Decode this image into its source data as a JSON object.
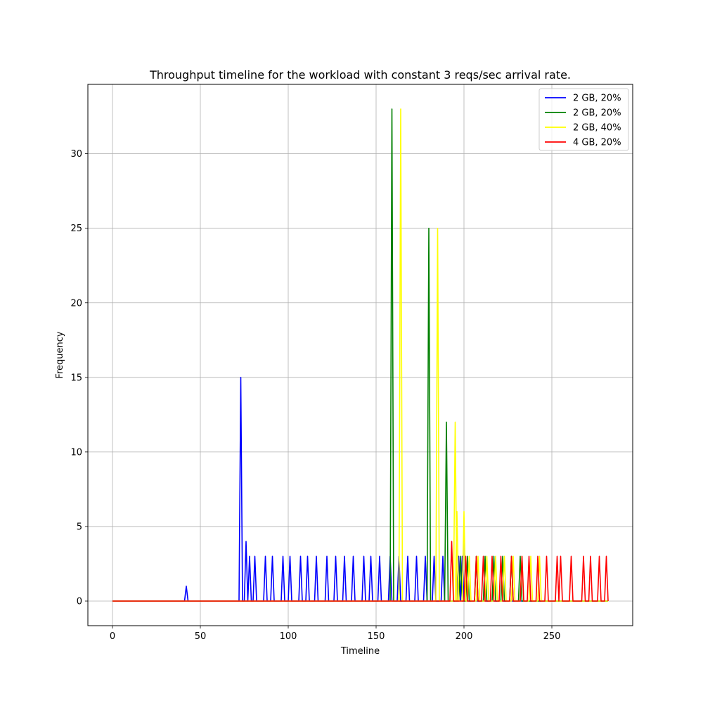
{
  "chart_data": {
    "type": "line",
    "title": "Throughput timeline for the workload with constant 3 reqs/sec arrival rate.",
    "xlabel": "Timeline",
    "ylabel": "Frequency",
    "xlim": [
      -14,
      296
    ],
    "ylim": [
      -1.65,
      34.65
    ],
    "xticks": [
      0,
      50,
      100,
      150,
      200,
      250
    ],
    "yticks": [
      0,
      5,
      10,
      15,
      20,
      25,
      30
    ],
    "grid": true,
    "legend_position": "top-right",
    "series": [
      {
        "name": "2 GB, 20%",
        "color": "#0000ff",
        "x_end": 282,
        "spikes": [
          [
            42,
            1
          ],
          [
            73,
            15
          ],
          [
            76,
            4
          ],
          [
            78,
            3
          ],
          [
            81,
            3
          ],
          [
            87,
            3
          ],
          [
            91,
            3
          ],
          [
            97,
            3
          ],
          [
            101,
            3
          ],
          [
            107,
            3
          ],
          [
            111,
            3
          ],
          [
            116,
            3
          ],
          [
            122,
            3
          ],
          [
            127,
            3
          ],
          [
            132,
            3
          ],
          [
            137,
            3
          ],
          [
            143,
            3
          ],
          [
            147,
            3
          ],
          [
            152,
            3
          ],
          [
            158,
            3
          ],
          [
            163,
            3
          ],
          [
            168,
            3
          ],
          [
            173,
            3
          ],
          [
            178,
            3
          ],
          [
            183,
            3
          ],
          [
            188,
            3
          ],
          [
            197,
            3
          ],
          [
            199,
            3
          ]
        ]
      },
      {
        "name": "2 GB, 20%",
        "color": "#008000",
        "x_end": 282,
        "spikes": [
          [
            159,
            33
          ],
          [
            180,
            25
          ],
          [
            190,
            12
          ],
          [
            198,
            3
          ],
          [
            202,
            3
          ],
          [
            207,
            3
          ],
          [
            212,
            3
          ],
          [
            217,
            3
          ],
          [
            222,
            3
          ],
          [
            227,
            3
          ],
          [
            232,
            3
          ]
        ]
      },
      {
        "name": "2 GB, 40%",
        "color": "#ffff00",
        "x_end": 282,
        "spikes": [
          [
            164,
            33
          ],
          [
            185,
            25
          ],
          [
            195,
            12
          ],
          [
            196,
            6
          ],
          [
            200,
            6
          ],
          [
            203,
            3
          ],
          [
            208,
            3
          ],
          [
            213,
            3
          ],
          [
            218,
            3
          ],
          [
            223,
            3
          ],
          [
            228,
            3
          ],
          [
            233,
            3
          ],
          [
            238,
            3
          ],
          [
            243,
            3
          ]
        ]
      },
      {
        "name": "4 GB, 20%",
        "color": "#ff0000",
        "x_end": 282,
        "spikes": [
          [
            193,
            4
          ],
          [
            201,
            3
          ],
          [
            207,
            3
          ],
          [
            211,
            3
          ],
          [
            216,
            3
          ],
          [
            221,
            3
          ],
          [
            227,
            3
          ],
          [
            233,
            3
          ],
          [
            237,
            3
          ],
          [
            242,
            3
          ],
          [
            247,
            3
          ],
          [
            253,
            3
          ],
          [
            255,
            3
          ],
          [
            261,
            3
          ],
          [
            268,
            3
          ],
          [
            272,
            3
          ],
          [
            277,
            3
          ],
          [
            281,
            3
          ]
        ]
      }
    ]
  }
}
